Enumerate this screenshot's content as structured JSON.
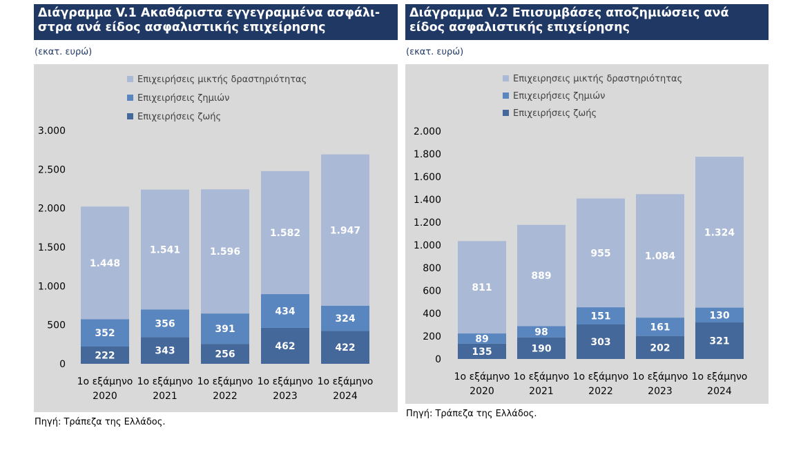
{
  "charts": [
    {
      "title": "Διάγραμμα V.1 Ακαθάριστα εγγεγραμμένα ασφάλι-στρα ανά είδος ασφαλιστικής επιχείρησης",
      "unit": "(εκατ. ευρώ)",
      "source": "Πηγή: Τράπεζα της Ελλάδος."
    },
    {
      "title": "Διάγραμμα V.2 Επισυμβάσες αποζημιώσεις ανά είδος ασφαλιστικής επιχείρησης",
      "unit": "(εκατ. ευρώ)",
      "source": "Πηγή: Τράπεζα της Ελλάδος."
    }
  ],
  "colors": {
    "life": "#44689a",
    "nonlife": "#5a86c0",
    "mixed": "#aab9d6",
    "panel_bg": "#d9d9d9",
    "title_bg": "#1f3864"
  },
  "chart_data": [
    {
      "type": "bar",
      "stacked": true,
      "title": "Διάγραμμα V.1 Ακαθάριστα εγγεγραμμένα ασφάλι-στρα ανά είδος ασφαλιστικής επιχείρησης",
      "categories": [
        [
          "1ο εξάμηνο",
          "2020"
        ],
        [
          "1ο εξάμηνο",
          "2021"
        ],
        [
          "1ο εξάμηνο",
          "2022"
        ],
        [
          "1ο εξάμηνο",
          "2023"
        ],
        [
          "1ο εξάμηνο",
          "2024"
        ]
      ],
      "series": [
        {
          "name": "Επιχειρήσεις ζωής",
          "color": "#44689a",
          "values": [
            222,
            343,
            256,
            462,
            422
          ],
          "labels": [
            "222",
            "343",
            "256",
            "462",
            "422"
          ]
        },
        {
          "name": "Επιχειρήσεις ζημιών",
          "color": "#5a86c0",
          "values": [
            352,
            356,
            391,
            434,
            324
          ],
          "labels": [
            "352",
            "356",
            "391",
            "434",
            "324"
          ]
        },
        {
          "name": "Επιχειρήσεις μικτής δραστηριότητας",
          "color": "#aab9d6",
          "values": [
            1448,
            1541,
            1596,
            1582,
            1947
          ],
          "labels": [
            "1.448",
            "1.541",
            "1.596",
            "1.582",
            "1.947"
          ]
        }
      ],
      "legend_order": [
        "Επιχειρήσεις μικτής δραστηριότητας",
        "Επιχειρήσεις ζημιών",
        "Επιχειρήσεις ζωής"
      ],
      "ylim": [
        0,
        3000
      ],
      "yticks": [
        0,
        500,
        1000,
        1500,
        2000,
        2500,
        3000
      ],
      "ytick_labels": [
        "0",
        "500",
        "1.000",
        "1.500",
        "2.000",
        "2.500",
        "3.000"
      ],
      "grid": false,
      "legend": "top-left"
    },
    {
      "type": "bar",
      "stacked": true,
      "title": "Διάγραμμα V.2 Επισυμβάσες αποζημιώσεις ανά είδος ασφαλιστικής επιχείρησης",
      "categories": [
        [
          "1ο εξάμηνο",
          "2020"
        ],
        [
          "1ο εξάμηνο",
          "2021"
        ],
        [
          "1ο εξάμηνο",
          "2022"
        ],
        [
          "1ο εξάμηνο",
          "2023"
        ],
        [
          "1ο εξάμηνο",
          "2024"
        ]
      ],
      "series": [
        {
          "name": "Επιχειρήσεις ζωής",
          "color": "#44689a",
          "values": [
            135,
            190,
            303,
            202,
            321
          ],
          "labels": [
            "135",
            "190",
            "303",
            "202",
            "321"
          ]
        },
        {
          "name": "Επιχειρήσεις ζημιών",
          "color": "#5a86c0",
          "values": [
            89,
            98,
            151,
            161,
            130
          ],
          "labels": [
            "89",
            "98",
            "151",
            "161",
            "130"
          ]
        },
        {
          "name": "Επιχειρησεις μικτής δραστηριότητας",
          "color": "#aab9d6",
          "values": [
            811,
            889,
            955,
            1084,
            1324
          ],
          "labels": [
            "811",
            "889",
            "955",
            "1.084",
            "1.324"
          ]
        }
      ],
      "legend_order": [
        "Επιχειρησεις μικτής δραστηριότητας",
        "Επιχειρήσεις ζημιών",
        "Επιχειρήσεις ζωής"
      ],
      "ylim": [
        0,
        2000
      ],
      "yticks": [
        0,
        200,
        400,
        600,
        800,
        1000,
        1200,
        1400,
        1600,
        1800,
        2000
      ],
      "ytick_labels": [
        "0",
        "200",
        "400",
        "600",
        "800",
        "1.000",
        "1.200",
        "1.400",
        "1.600",
        "1.800",
        "2.000"
      ],
      "grid": false,
      "legend": "top-left"
    }
  ]
}
